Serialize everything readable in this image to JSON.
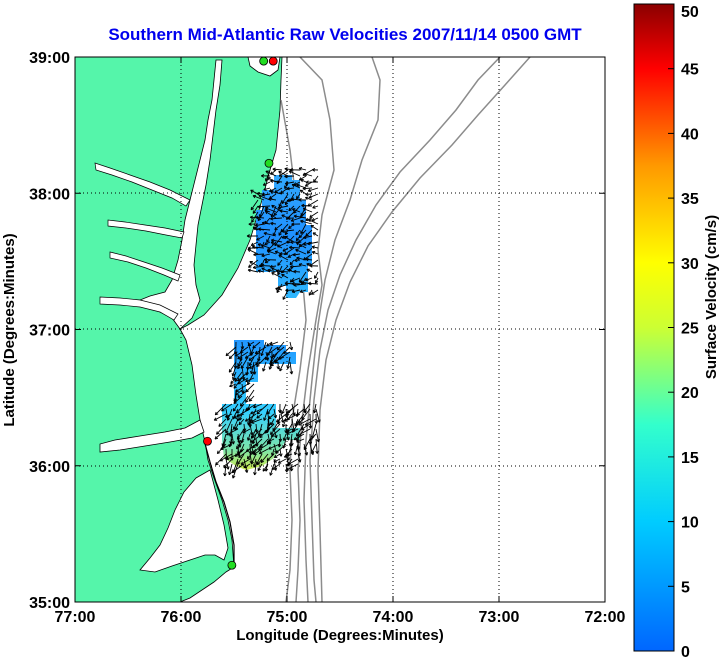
{
  "chart_data": {
    "type": "map",
    "title": "Southern Mid-Atlantic Raw Velocities 2007/11/14 0500 GMT",
    "xlabel": "Longitude (Degrees:Minutes)",
    "ylabel": "Latitude (Degrees:Minutes)",
    "xlim": [
      -77,
      -72
    ],
    "ylim": [
      35,
      39
    ],
    "x_ticks": [
      -77,
      -76,
      -75,
      -74,
      -73,
      -72
    ],
    "x_tick_labels": [
      "77:00",
      "76:00",
      "75:00",
      "74:00",
      "73:00",
      "72:00"
    ],
    "y_ticks": [
      35,
      36,
      37,
      38,
      39
    ],
    "y_tick_labels": [
      "35:00",
      "36:00",
      "37:00",
      "38:00",
      "39:00"
    ],
    "grid": "dotted",
    "colorbar": {
      "label": "Surface Velocity (cm/s)",
      "range": [
        0,
        50
      ],
      "ticks": [
        0,
        5,
        10,
        15,
        20,
        25,
        30,
        35,
        40,
        45,
        50
      ],
      "tick_labels": [
        "0",
        "5",
        "10",
        "15",
        "20",
        "25",
        "30",
        "35",
        "40",
        "45",
        "50"
      ],
      "colormap": "jet"
    },
    "colors": {
      "land": "#55f5aa",
      "bathymetry": "#8c8c8c",
      "title": "#0000ee",
      "vectors": "#000000"
    },
    "stations": [
      {
        "lon": -75.13,
        "lat": 38.97,
        "status": "red"
      },
      {
        "lon": -75.22,
        "lat": 38.97,
        "status": "green"
      },
      {
        "lon": -75.17,
        "lat": 38.22,
        "status": "green"
      },
      {
        "lon": -75.75,
        "lat": 36.18,
        "status": "red"
      },
      {
        "lon": -75.52,
        "lat": 35.27,
        "status": "green"
      }
    ],
    "velocity_regions": [
      {
        "name": "northern patch",
        "lon": [
          -75.3,
          -74.95
        ],
        "lat": [
          37.3,
          38.1
        ],
        "speed": [
          3,
          8
        ]
      },
      {
        "name": "southern patch",
        "lon": [
          -75.55,
          -74.9
        ],
        "lat": [
          36.2,
          36.95
        ],
        "speed": [
          4,
          20
        ]
      }
    ]
  }
}
